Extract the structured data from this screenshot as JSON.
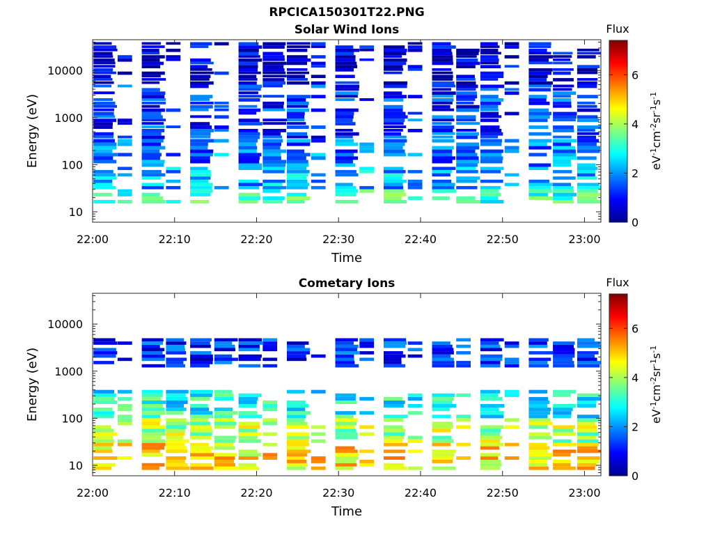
{
  "figure": {
    "title": "RPCICA150301T22.PNG"
  },
  "colorbar": {
    "label_title": "Flux",
    "unit_parts": [
      {
        "text": "eV",
        "sup": false
      },
      {
        "text": "-1",
        "sup": true
      },
      {
        "text": "cm",
        "sup": false
      },
      {
        "text": "-2",
        "sup": true
      },
      {
        "text": "sr",
        "sup": false
      },
      {
        "text": "-1",
        "sup": true
      },
      {
        "text": "s",
        "sup": false
      },
      {
        "text": "-1",
        "sup": true
      }
    ],
    "ticks": [
      {
        "value": 0,
        "label": "0"
      },
      {
        "value": 2,
        "label": "2"
      },
      {
        "value": 4,
        "label": "4"
      },
      {
        "value": 6,
        "label": "6"
      }
    ],
    "range": [
      0,
      7.4
    ],
    "colormap": "jet"
  },
  "chart_data": [
    {
      "type": "heatmap",
      "title": "Solar Wind Ions",
      "xlabel": "Time",
      "ylabel": "Energy (eV)",
      "yscale": "log",
      "ylim": [
        6,
        45000
      ],
      "xlim": [
        "22:00",
        "23:02"
      ],
      "xticks": [
        {
          "value": 0,
          "label": "22:00"
        },
        {
          "value": 10,
          "label": "22:10"
        },
        {
          "value": 20,
          "label": "22:20"
        },
        {
          "value": 30,
          "label": "22:30"
        },
        {
          "value": 40,
          "label": "22:40"
        },
        {
          "value": 50,
          "label": "22:50"
        },
        {
          "value": 60,
          "label": "23:00"
        }
      ],
      "yticks": [
        {
          "value": 10,
          "label": "10"
        },
        {
          "value": 100,
          "label": "100"
        },
        {
          "value": 1000,
          "label": "1000"
        },
        {
          "value": 10000,
          "label": "10000"
        }
      ],
      "zlabel": "Flux",
      "zrange": [
        0,
        7.4
      ],
      "grid": false,
      "bands": [
        {
          "emin": 15,
          "emax": 30,
          "flux": 3.2
        },
        {
          "emin": 30,
          "emax": 90,
          "flux": 2.2
        },
        {
          "emin": 90,
          "emax": 350,
          "flux": 1.8
        },
        {
          "emin": 350,
          "emax": 5000,
          "flux": 1.3
        },
        {
          "emin": 5000,
          "emax": 40000,
          "flux": 0.6
        }
      ]
    },
    {
      "type": "heatmap",
      "title": "Cometary Ions",
      "xlabel": "Time",
      "ylabel": "Energy (eV)",
      "yscale": "log",
      "ylim": [
        6,
        45000
      ],
      "xlim": [
        "22:00",
        "23:02"
      ],
      "xticks": [
        {
          "value": 0,
          "label": "22:00"
        },
        {
          "value": 10,
          "label": "22:10"
        },
        {
          "value": 20,
          "label": "22:20"
        },
        {
          "value": 30,
          "label": "22:30"
        },
        {
          "value": 40,
          "label": "22:40"
        },
        {
          "value": 50,
          "label": "22:50"
        },
        {
          "value": 60,
          "label": "23:00"
        }
      ],
      "yticks": [
        {
          "value": 10,
          "label": "10"
        },
        {
          "value": 100,
          "label": "100"
        },
        {
          "value": 1000,
          "label": "1000"
        },
        {
          "value": 10000,
          "label": "10000"
        }
      ],
      "zlabel": "Flux",
      "zrange": [
        0,
        7.4
      ],
      "grid": false,
      "bands": [
        {
          "emin": 8,
          "emax": 30,
          "flux": 4.8
        },
        {
          "emin": 30,
          "emax": 100,
          "flux": 4.0
        },
        {
          "emin": 100,
          "emax": 400,
          "flux": 2.9
        },
        {
          "emin": 1200,
          "emax": 5000,
          "flux": 1.2
        }
      ]
    }
  ]
}
